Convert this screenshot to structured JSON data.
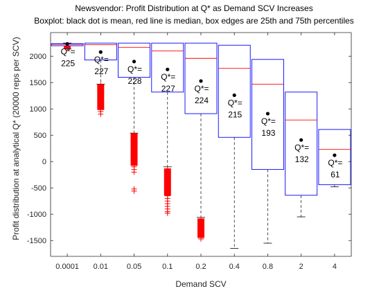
{
  "chart_data": {
    "type": "boxplot",
    "title": "Newsvendor: Profit Distribution at Q* as Demand SCV Increases",
    "subtitle": "Boxplot: black dot is mean, red line is median, box edges are 25th and 75th percentiles",
    "xlabel": "Demand SCV",
    "ylabel": "Profit distribution at analytical Q*  (20000 reps per SCV)",
    "ylim": [
      -1800,
      2450
    ],
    "yticks": [
      -1500,
      -1000,
      -500,
      0,
      500,
      1000,
      1500,
      2000
    ],
    "categories": [
      "0.0001",
      "0.01",
      "0.05",
      "0.1",
      "0.2",
      "0.4",
      "0.8",
      "2",
      "4"
    ],
    "q_label_prefix": "Q*=",
    "boxes": [
      {
        "category": "0.0001",
        "q_star": "225",
        "whisker_low": 2140,
        "q1": 2200,
        "median": 2225,
        "q3": 2240,
        "whisker_high": 2250,
        "mean": 2235,
        "outliers_low": [
          2150,
          2160,
          2170,
          2180,
          2190
        ],
        "outlier_band": [
          2150,
          2190
        ]
      },
      {
        "category": "0.01",
        "q_star": "227",
        "whisker_low": 1470,
        "q1": 1930,
        "median": 2220,
        "q3": 2250,
        "whisker_high": 2250,
        "mean": 2080,
        "outliers_low": [
          900,
          950,
          1000,
          1050,
          1100,
          1150,
          1200,
          1250,
          1300,
          1350,
          1400,
          1450
        ],
        "outlier_band": [
          980,
          1470
        ]
      },
      {
        "category": "0.05",
        "q_star": "228",
        "whisker_low": 540,
        "q1": 1600,
        "median": 2170,
        "q3": 2250,
        "whisker_high": 2250,
        "mean": 1900,
        "outliers_low": [
          -560,
          -520,
          -200,
          -150,
          -100,
          -50,
          0,
          50,
          100,
          150,
          200,
          250,
          300,
          350,
          400,
          450,
          500
        ],
        "outlier_band": [
          -80,
          540
        ]
      },
      {
        "category": "0.1",
        "q_star": "227",
        "whisker_low": -100,
        "q1": 1320,
        "median": 2100,
        "q3": 2250,
        "whisker_high": 2250,
        "mean": 1750,
        "outliers_low": [
          -980,
          -950,
          -900,
          -850,
          -800,
          -750,
          -700,
          -650,
          -600,
          -550,
          -500,
          -450,
          -400,
          -350,
          -300,
          -250,
          -200,
          -150
        ],
        "outlier_band": [
          -650,
          -130
        ]
      },
      {
        "category": "0.2",
        "q_star": "224",
        "whisker_low": -1060,
        "q1": 910,
        "median": 1960,
        "q3": 2250,
        "whisker_high": 2250,
        "mean": 1530,
        "outliers_low": [
          -1470,
          -1440,
          -1400,
          -1350,
          -1300,
          -1250,
          -1200,
          -1150,
          -1100
        ],
        "outlier_band": [
          -1450,
          -1080
        ]
      },
      {
        "category": "0.4",
        "q_star": "215",
        "whisker_low": -1650,
        "q1": 460,
        "median": 1770,
        "q3": 2210,
        "whisker_high": 2210,
        "mean": 1260,
        "outliers_low": [],
        "outlier_band": null
      },
      {
        "category": "0.8",
        "q_star": "193",
        "whisker_low": -1550,
        "q1": -150,
        "median": 1470,
        "q3": 1940,
        "whisker_high": 1940,
        "mean": 910,
        "outliers_low": [],
        "outlier_band": null
      },
      {
        "category": "2",
        "q_star": "132",
        "whisker_low": -1050,
        "q1": -640,
        "median": 790,
        "q3": 1320,
        "whisker_high": 1320,
        "mean": 410,
        "outliers_low": [],
        "outlier_band": null
      },
      {
        "category": "4",
        "q_star": "61",
        "whisker_low": -480,
        "q1": -440,
        "median": 230,
        "q3": 610,
        "whisker_high": 610,
        "mean": 120,
        "outliers_low": [],
        "outlier_band": null
      }
    ],
    "colors": {
      "box": "#0000ff",
      "median": "#ff0000",
      "outlier": "#ff0000",
      "mean": "#000000",
      "whisker": "#000000",
      "axis": "#262626",
      "text": "#262626"
    }
  }
}
